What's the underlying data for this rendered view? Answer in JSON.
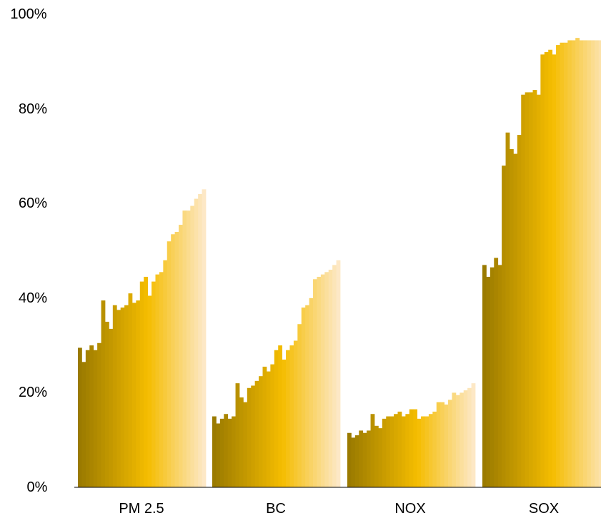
{
  "chart_data": {
    "type": "bar",
    "title": "",
    "xlabel": "",
    "ylabel": "",
    "ylim": [
      0,
      100
    ],
    "yticks": [
      "0%",
      "20%",
      "40%",
      "60%",
      "80%",
      "100%"
    ],
    "grid": false,
    "legend": "none",
    "categories": [
      "PM 2.5",
      "BC",
      "NOX",
      "SOX"
    ],
    "groups": [
      {
        "category": "PM 2.5",
        "values": [
          29.5,
          26.5,
          29.0,
          30.0,
          29.0,
          30.5,
          39.5,
          35.0,
          33.5,
          38.5,
          37.5,
          38.0,
          38.5,
          41.0,
          39.0,
          39.5,
          43.5,
          44.5,
          40.5,
          43.5,
          45.0,
          45.5,
          48.0,
          52.0,
          53.5,
          54.0,
          55.5,
          58.5,
          58.5,
          59.5,
          61.0,
          62.0,
          63.0
        ]
      },
      {
        "category": "BC",
        "values": [
          15.0,
          13.5,
          14.5,
          15.5,
          14.5,
          15.0,
          22.0,
          19.0,
          18.0,
          21.0,
          21.5,
          22.5,
          23.5,
          25.5,
          24.5,
          26.0,
          29.0,
          30.0,
          27.0,
          29.0,
          30.0,
          31.0,
          34.5,
          38.0,
          38.5,
          40.0,
          44.0,
          44.5,
          45.0,
          45.5,
          46.0,
          47.0,
          48.0
        ]
      },
      {
        "category": "NOX",
        "values": [
          11.5,
          10.5,
          11.0,
          12.0,
          11.5,
          12.0,
          15.5,
          13.0,
          12.5,
          14.5,
          15.0,
          15.0,
          15.5,
          16.0,
          15.0,
          15.5,
          16.5,
          16.5,
          14.5,
          15.0,
          15.0,
          15.5,
          16.0,
          18.0,
          18.0,
          17.5,
          18.5,
          20.0,
          19.5,
          20.0,
          20.5,
          21.0,
          22.0
        ]
      },
      {
        "category": "SOX",
        "values": [
          47.0,
          44.5,
          46.5,
          48.5,
          47.0,
          68.0,
          75.0,
          71.5,
          70.5,
          74.5,
          83.0,
          83.5,
          83.5,
          84.0,
          83.0,
          91.5,
          92.0,
          92.5,
          91.5,
          93.5,
          94.0,
          94.0,
          94.5,
          94.5,
          95.0,
          94.5,
          94.5,
          94.5,
          94.5,
          94.5,
          94.5,
          94.5,
          94.5
        ]
      }
    ],
    "colors": {
      "dark": "#9a7a00",
      "mid": "#f5bd00",
      "light": "#fde8c6",
      "axis": "#000000"
    }
  }
}
